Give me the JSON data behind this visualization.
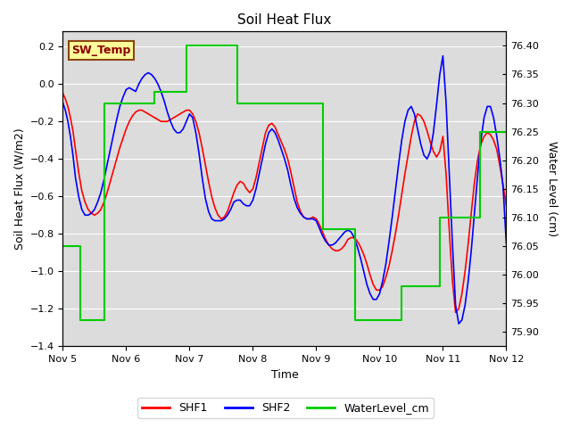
{
  "title": "Soil Heat Flux",
  "xlabel": "Time",
  "ylabel_left": "Soil Heat Flux (W/m2)",
  "ylabel_right": "Water Level (cm)",
  "ylim_left": [
    -1.4,
    0.28
  ],
  "ylim_right": [
    75.875,
    76.425
  ],
  "yticks_left": [
    0.2,
    0.0,
    -0.2,
    -0.4,
    -0.6,
    -0.8,
    -1.0,
    -1.2,
    -1.4
  ],
  "yticks_right": [
    76.4,
    76.35,
    76.3,
    76.25,
    76.2,
    76.15,
    76.1,
    76.05,
    76.0,
    75.95,
    75.9
  ],
  "bg_color": "#dcdcdc",
  "annotation_text": "SW_Temp",
  "annotation_bg": "#ffff99",
  "annotation_border": "#8b4513",
  "annotation_text_color": "#8b0000",
  "shf1_color": "#ff0000",
  "shf2_color": "#0000ff",
  "water_color": "#00cc00",
  "legend_labels": [
    "SHF1",
    "SHF2",
    "WaterLevel_cm"
  ],
  "shf1_x": [
    5.0,
    5.04,
    5.08,
    5.12,
    5.16,
    5.2,
    5.25,
    5.3,
    5.35,
    5.4,
    5.45,
    5.5,
    5.55,
    5.6,
    5.65,
    5.7,
    5.75,
    5.8,
    5.85,
    5.9,
    5.95,
    6.0,
    6.05,
    6.1,
    6.15,
    6.2,
    6.25,
    6.3,
    6.35,
    6.4,
    6.45,
    6.5,
    6.55,
    6.6,
    6.65,
    6.7,
    6.75,
    6.8,
    6.85,
    6.9,
    6.95,
    7.0,
    7.05,
    7.1,
    7.15,
    7.2,
    7.25,
    7.3,
    7.35,
    7.4,
    7.45,
    7.5,
    7.55,
    7.6,
    7.65,
    7.7,
    7.75,
    7.8,
    7.85,
    7.9,
    7.95,
    8.0,
    8.05,
    8.1,
    8.15,
    8.2,
    8.25,
    8.3,
    8.35,
    8.4,
    8.45,
    8.5,
    8.55,
    8.6,
    8.65,
    8.7,
    8.75,
    8.8,
    8.85,
    8.9,
    8.95,
    9.0,
    9.05,
    9.1,
    9.15,
    9.2,
    9.25,
    9.3,
    9.35,
    9.4,
    9.45,
    9.5,
    9.55,
    9.6,
    9.65,
    9.7,
    9.75,
    9.8,
    9.85,
    9.9,
    9.95,
    10.0,
    10.05,
    10.1,
    10.15,
    10.2,
    10.25,
    10.3,
    10.35,
    10.4,
    10.45,
    10.5,
    10.55,
    10.6,
    10.65,
    10.7,
    10.75,
    10.8,
    10.85,
    10.9,
    10.95,
    11.0,
    11.05,
    11.1,
    11.15,
    11.2,
    11.25,
    11.3,
    11.35,
    11.4,
    11.45,
    11.5,
    11.55,
    11.6,
    11.65,
    11.7,
    11.75,
    11.8,
    11.85,
    11.9,
    11.95,
    12.0
  ],
  "shf1_y": [
    -0.05,
    -0.08,
    -0.12,
    -0.18,
    -0.25,
    -0.35,
    -0.47,
    -0.57,
    -0.63,
    -0.67,
    -0.69,
    -0.7,
    -0.69,
    -0.67,
    -0.63,
    -0.58,
    -0.52,
    -0.46,
    -0.4,
    -0.34,
    -0.29,
    -0.24,
    -0.2,
    -0.17,
    -0.15,
    -0.14,
    -0.14,
    -0.15,
    -0.16,
    -0.17,
    -0.18,
    -0.19,
    -0.2,
    -0.2,
    -0.2,
    -0.19,
    -0.18,
    -0.17,
    -0.16,
    -0.15,
    -0.14,
    -0.14,
    -0.16,
    -0.2,
    -0.26,
    -0.34,
    -0.43,
    -0.52,
    -0.6,
    -0.66,
    -0.7,
    -0.72,
    -0.71,
    -0.68,
    -0.63,
    -0.58,
    -0.54,
    -0.52,
    -0.53,
    -0.56,
    -0.58,
    -0.56,
    -0.5,
    -0.42,
    -0.34,
    -0.26,
    -0.22,
    -0.21,
    -0.23,
    -0.27,
    -0.31,
    -0.35,
    -0.4,
    -0.47,
    -0.55,
    -0.63,
    -0.68,
    -0.71,
    -0.72,
    -0.72,
    -0.71,
    -0.72,
    -0.75,
    -0.79,
    -0.83,
    -0.86,
    -0.88,
    -0.89,
    -0.89,
    -0.88,
    -0.86,
    -0.83,
    -0.82,
    -0.82,
    -0.84,
    -0.87,
    -0.91,
    -0.96,
    -1.02,
    -1.07,
    -1.1,
    -1.1,
    -1.08,
    -1.03,
    -0.97,
    -0.89,
    -0.8,
    -0.7,
    -0.59,
    -0.48,
    -0.38,
    -0.28,
    -0.2,
    -0.16,
    -0.17,
    -0.2,
    -0.25,
    -0.31,
    -0.36,
    -0.39,
    -0.36,
    -0.28,
    -0.48,
    -0.78,
    -1.05,
    -1.22,
    -1.2,
    -1.12,
    -1.0,
    -0.85,
    -0.68,
    -0.52,
    -0.4,
    -0.32,
    -0.28,
    -0.26,
    -0.27,
    -0.3,
    -0.35,
    -0.44,
    -0.54,
    -0.65
  ],
  "shf2_x": [
    5.0,
    5.04,
    5.08,
    5.12,
    5.16,
    5.2,
    5.25,
    5.3,
    5.35,
    5.4,
    5.45,
    5.5,
    5.55,
    5.6,
    5.65,
    5.7,
    5.75,
    5.8,
    5.85,
    5.9,
    5.95,
    6.0,
    6.05,
    6.1,
    6.15,
    6.2,
    6.25,
    6.3,
    6.35,
    6.4,
    6.45,
    6.5,
    6.55,
    6.6,
    6.65,
    6.7,
    6.75,
    6.8,
    6.85,
    6.9,
    6.95,
    7.0,
    7.05,
    7.1,
    7.15,
    7.2,
    7.25,
    7.3,
    7.35,
    7.4,
    7.45,
    7.5,
    7.55,
    7.6,
    7.65,
    7.7,
    7.75,
    7.8,
    7.85,
    7.9,
    7.95,
    8.0,
    8.05,
    8.1,
    8.15,
    8.2,
    8.25,
    8.3,
    8.35,
    8.4,
    8.45,
    8.5,
    8.55,
    8.6,
    8.65,
    8.7,
    8.75,
    8.8,
    8.85,
    8.9,
    8.95,
    9.0,
    9.05,
    9.1,
    9.15,
    9.2,
    9.25,
    9.3,
    9.35,
    9.4,
    9.45,
    9.5,
    9.55,
    9.6,
    9.65,
    9.7,
    9.75,
    9.8,
    9.85,
    9.9,
    9.95,
    10.0,
    10.05,
    10.1,
    10.15,
    10.2,
    10.25,
    10.3,
    10.35,
    10.4,
    10.45,
    10.5,
    10.55,
    10.6,
    10.65,
    10.7,
    10.75,
    10.8,
    10.85,
    10.9,
    10.95,
    11.0,
    11.05,
    11.1,
    11.15,
    11.2,
    11.25,
    11.3,
    11.35,
    11.4,
    11.45,
    11.5,
    11.55,
    11.6,
    11.65,
    11.7,
    11.75,
    11.8,
    11.85,
    11.9,
    11.95,
    12.0
  ],
  "shf2_y": [
    -0.1,
    -0.14,
    -0.2,
    -0.28,
    -0.38,
    -0.5,
    -0.6,
    -0.67,
    -0.7,
    -0.7,
    -0.69,
    -0.67,
    -0.63,
    -0.58,
    -0.51,
    -0.43,
    -0.35,
    -0.27,
    -0.19,
    -0.12,
    -0.07,
    -0.03,
    -0.02,
    -0.03,
    -0.04,
    0.0,
    0.03,
    0.05,
    0.06,
    0.05,
    0.03,
    0.0,
    -0.04,
    -0.09,
    -0.15,
    -0.2,
    -0.24,
    -0.26,
    -0.26,
    -0.24,
    -0.2,
    -0.16,
    -0.18,
    -0.26,
    -0.37,
    -0.5,
    -0.61,
    -0.68,
    -0.72,
    -0.73,
    -0.73,
    -0.73,
    -0.72,
    -0.7,
    -0.67,
    -0.63,
    -0.62,
    -0.62,
    -0.64,
    -0.65,
    -0.65,
    -0.62,
    -0.56,
    -0.48,
    -0.4,
    -0.32,
    -0.26,
    -0.24,
    -0.26,
    -0.3,
    -0.35,
    -0.4,
    -0.46,
    -0.54,
    -0.61,
    -0.66,
    -0.69,
    -0.71,
    -0.72,
    -0.72,
    -0.72,
    -0.73,
    -0.77,
    -0.81,
    -0.84,
    -0.86,
    -0.86,
    -0.85,
    -0.83,
    -0.81,
    -0.79,
    -0.78,
    -0.79,
    -0.82,
    -0.87,
    -0.93,
    -1.0,
    -1.07,
    -1.12,
    -1.15,
    -1.15,
    -1.12,
    -1.05,
    -0.96,
    -0.84,
    -0.71,
    -0.57,
    -0.43,
    -0.3,
    -0.2,
    -0.14,
    -0.12,
    -0.16,
    -0.24,
    -0.32,
    -0.38,
    -0.4,
    -0.36,
    -0.26,
    -0.11,
    0.05,
    0.15,
    -0.1,
    -0.48,
    -0.85,
    -1.18,
    -1.28,
    -1.26,
    -1.18,
    -1.05,
    -0.88,
    -0.68,
    -0.48,
    -0.3,
    -0.18,
    -0.12,
    -0.12,
    -0.18,
    -0.28,
    -0.4,
    -0.55,
    -0.85
  ],
  "water_steps_x": [
    5.0,
    5.28,
    5.28,
    5.65,
    5.65,
    6.45,
    6.45,
    6.95,
    6.95,
    7.75,
    7.75,
    8.5,
    8.5,
    9.1,
    9.1,
    9.62,
    9.62,
    10.1,
    10.1,
    10.35,
    10.35,
    10.95,
    10.95,
    11.4,
    11.4,
    11.58,
    11.58,
    12.0
  ],
  "water_steps_y": [
    76.05,
    76.05,
    75.92,
    75.92,
    76.3,
    76.3,
    76.32,
    76.32,
    76.4,
    76.4,
    76.3,
    76.3,
    76.3,
    76.3,
    76.08,
    76.08,
    75.92,
    75.92,
    75.92,
    75.92,
    75.98,
    75.98,
    76.1,
    76.1,
    76.1,
    76.1,
    76.25,
    76.25
  ]
}
